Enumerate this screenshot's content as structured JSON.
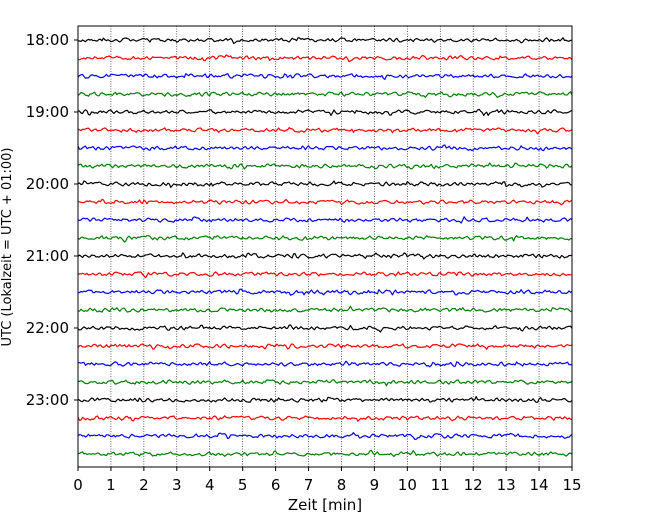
{
  "chart_data": {
    "type": "line",
    "title": "",
    "xlabel": "Zeit  [min]",
    "ylabel": "UTC (Lokalzeit = UTC + 01:00)",
    "xlim": [
      0,
      15
    ],
    "x_ticks": [
      "0",
      "1",
      "2",
      "3",
      "4",
      "5",
      "6",
      "7",
      "8",
      "9",
      "10",
      "11",
      "12",
      "13",
      "14",
      "15"
    ],
    "y_ticks": [
      "18:00",
      "19:00",
      "20:00",
      "21:00",
      "22:00",
      "23:00"
    ],
    "trace_start_times": [
      "18:00",
      "18:15",
      "18:30",
      "18:45",
      "19:00",
      "19:15",
      "19:30",
      "19:45",
      "20:00",
      "20:15",
      "20:30",
      "20:45",
      "21:00",
      "21:15",
      "21:30",
      "21:45",
      "22:00",
      "22:15",
      "22:30",
      "22:45",
      "23:00",
      "23:15",
      "23:30",
      "23:45"
    ],
    "trace_colors": [
      "#000000",
      "#ff0000",
      "#0000ff",
      "#008000"
    ],
    "grid": "vertical dotted lines at each minute"
  }
}
